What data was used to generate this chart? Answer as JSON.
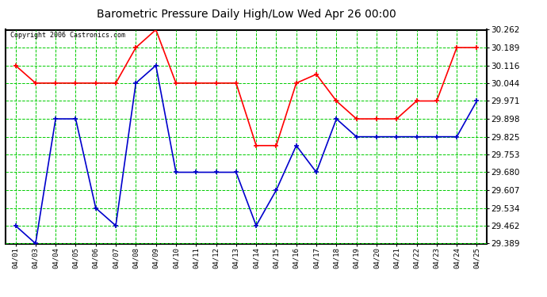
{
  "title": "Barometric Pressure Daily High/Low Wed Apr 26 00:00",
  "copyright": "Copyright 2006 Castronics.com",
  "x_labels": [
    "04/01",
    "04/03",
    "04/04",
    "04/05",
    "04/06",
    "04/07",
    "04/08",
    "04/09",
    "04/10",
    "04/11",
    "04/12",
    "04/13",
    "04/14",
    "04/15",
    "04/16",
    "04/17",
    "04/18",
    "04/19",
    "04/20",
    "04/21",
    "04/22",
    "04/23",
    "04/24",
    "04/25"
  ],
  "high_values": [
    30.116,
    30.044,
    30.044,
    30.044,
    30.044,
    30.044,
    30.189,
    30.262,
    30.044,
    30.044,
    30.044,
    30.044,
    29.789,
    29.789,
    30.044,
    30.08,
    29.971,
    29.898,
    29.898,
    29.898,
    29.971,
    29.971,
    30.189,
    30.189
  ],
  "low_values": [
    29.462,
    29.389,
    29.898,
    29.898,
    29.534,
    29.462,
    30.044,
    30.116,
    29.68,
    29.68,
    29.68,
    29.68,
    29.462,
    29.607,
    29.789,
    29.68,
    29.898,
    29.825,
    29.825,
    29.825,
    29.825,
    29.825,
    29.825,
    29.971
  ],
  "high_color": "#ff0000",
  "low_color": "#0000cc",
  "background_color": "#ffffff",
  "plot_bg_color": "#ffffff",
  "grid_color": "#00cc00",
  "title_color": "#000000",
  "y_min": 29.389,
  "y_max": 30.262,
  "y_ticks": [
    29.389,
    29.462,
    29.534,
    29.607,
    29.68,
    29.753,
    29.825,
    29.898,
    29.971,
    30.044,
    30.116,
    30.189,
    30.262
  ]
}
